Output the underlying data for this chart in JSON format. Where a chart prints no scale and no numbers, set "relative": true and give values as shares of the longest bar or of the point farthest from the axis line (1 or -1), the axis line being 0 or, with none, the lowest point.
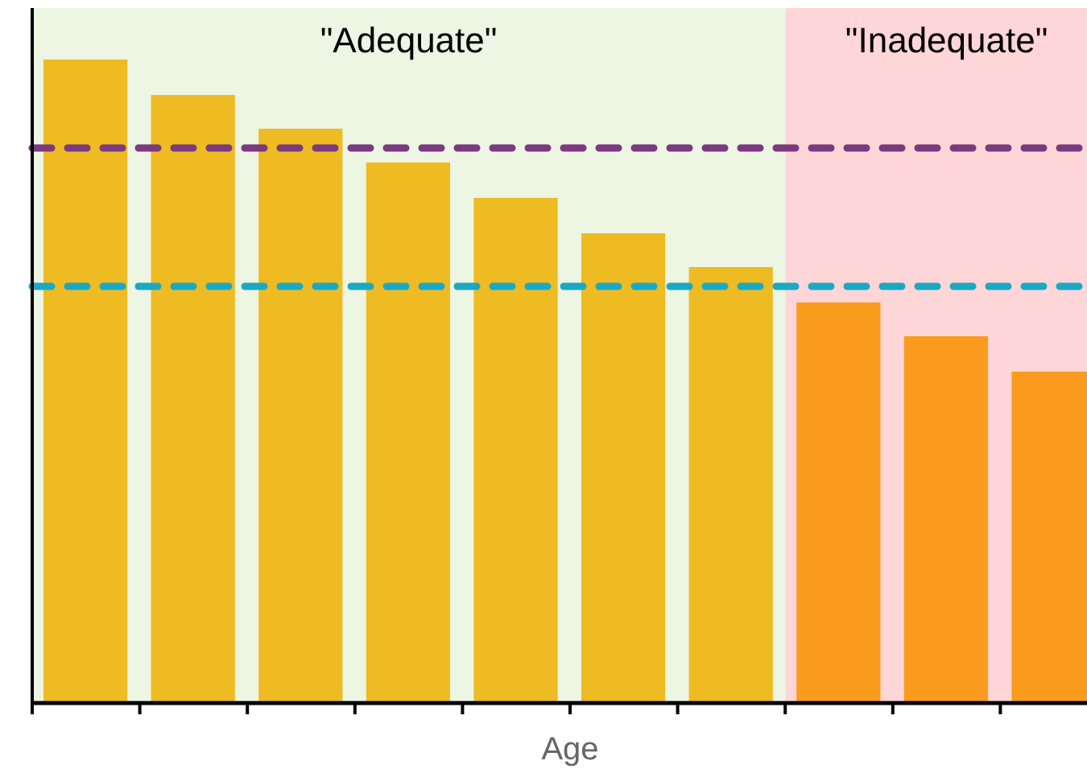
{
  "chart_data": {
    "type": "bar",
    "xlabel": "Age",
    "relative": true,
    "categories": [
      null,
      null,
      null,
      null,
      null,
      null,
      null,
      null,
      null,
      null
    ],
    "values": [
      1,
      0.945,
      0.8925,
      0.84,
      0.785,
      0.73,
      0.6775,
      0.6225,
      0.57,
      0.515
    ],
    "colors": [
      "#eebb22",
      "#eebb22",
      "#eebb22",
      "#eebb22",
      "#eebb22",
      "#eebb22",
      "#eebb22",
      "#f99b1c",
      "#f99b1c",
      "#f99b1c"
    ],
    "annotations": [
      "\"Adequate\"",
      "\"Inadequate\""
    ],
    "ref_lines": [
      {
        "axis": "y",
        "value": 0.8625,
        "color": "#7b3a7f",
        "line_style": "dashed"
      },
      {
        "axis": "y",
        "value": 0.6475,
        "color": "#1aa9c4",
        "line_style": "dashed"
      }
    ]
  }
}
